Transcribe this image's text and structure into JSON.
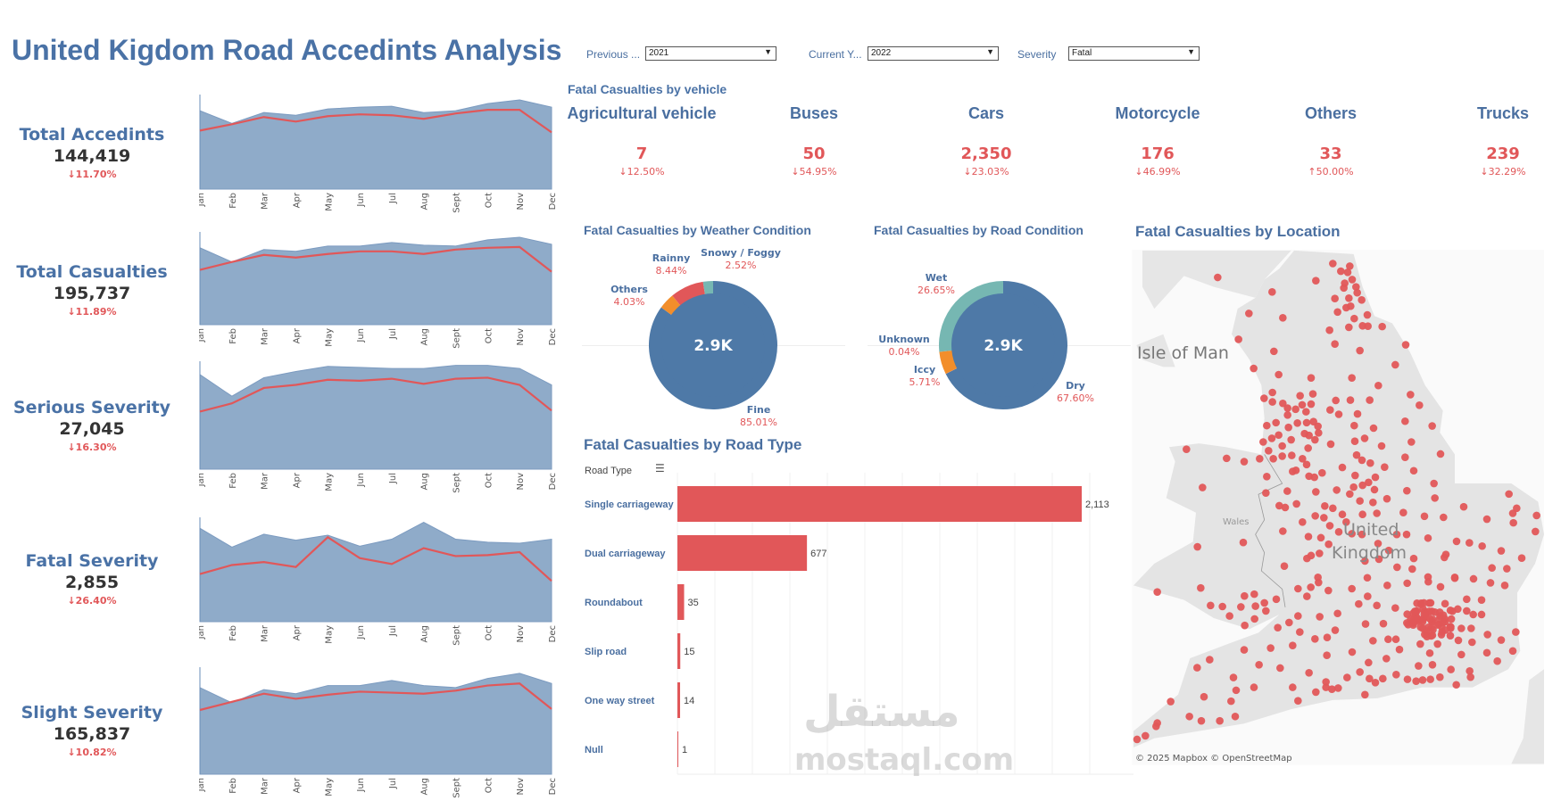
{
  "title": "United Kigdom Road Accedints Analysis",
  "filters": [
    {
      "label": "Previous ...",
      "value": "2021"
    },
    {
      "label": "Current Y...",
      "value": "2022"
    },
    {
      "label": "Severity",
      "value": "Fatal"
    }
  ],
  "months": [
    "Jan",
    "Feb",
    "Mar",
    "Apr",
    "May",
    "Jun",
    "Jul",
    "Aug",
    "Sept",
    "Oct",
    "Nov",
    "Dec"
  ],
  "kpis": [
    {
      "label": "Total Accedints",
      "value": "144,419",
      "change": "↓11.70%",
      "previous": [
        87,
        73,
        85,
        82,
        89,
        91,
        92,
        85,
        87,
        95,
        99,
        91
      ],
      "current": [
        65,
        72,
        80,
        75,
        81,
        83,
        82,
        78,
        84,
        88,
        88,
        63
      ]
    },
    {
      "label": "Total Casualties",
      "value": "195,737",
      "change": "↓11.89%",
      "previous": [
        87,
        71,
        85,
        83,
        89,
        89,
        93,
        90,
        89,
        96,
        99,
        91
      ],
      "current": [
        62,
        71,
        79,
        76,
        80,
        83,
        83,
        80,
        85,
        87,
        88,
        60
      ]
    },
    {
      "label": "Serious Severity",
      "value": "27,045",
      "change": "↓16.30%",
      "previous": [
        92,
        71,
        89,
        95,
        100,
        99,
        98,
        98,
        101,
        101,
        98,
        82
      ],
      "current": [
        56,
        64,
        79,
        82,
        87,
        86,
        88,
        83,
        88,
        89,
        82,
        57
      ]
    },
    {
      "label": "Fatal Severity",
      "value": "2,855",
      "change": "↓26.40%",
      "previous": [
        94,
        75,
        88,
        82,
        87,
        76,
        83,
        100,
        83,
        80,
        79,
        83
      ],
      "current": [
        48,
        57,
        60,
        55,
        85,
        64,
        58,
        74,
        66,
        67,
        70,
        41
      ]
    },
    {
      "label": "Slight Severity",
      "value": "165,837",
      "change": "↓10.82%",
      "previous": [
        85,
        70,
        83,
        79,
        87,
        87,
        92,
        87,
        85,
        94,
        99,
        89
      ],
      "current": [
        63,
        71,
        79,
        74,
        78,
        81,
        80,
        79,
        82,
        87,
        89,
        64
      ]
    }
  ],
  "vehicles": {
    "title": "Fatal Casualties by vehicle",
    "items": [
      {
        "name": "Agricultural vehicle",
        "value": "7",
        "change": "↓12.50%"
      },
      {
        "name": "Buses",
        "value": "50",
        "change": "↓54.95%"
      },
      {
        "name": "Cars",
        "value": "2,350",
        "change": "↓23.03%"
      },
      {
        "name": "Motorcycle",
        "value": "176",
        "change": "↓46.99%"
      },
      {
        "name": "Others",
        "value": "33",
        "change": "↑50.00%"
      },
      {
        "name": "Trucks",
        "value": "239",
        "change": "↓32.29%"
      }
    ]
  },
  "weather": {
    "title": "Fatal Casualties by Weather Condition",
    "center": "2.9K",
    "slices": [
      {
        "name": "Fine",
        "pct": "85.01%",
        "value": 85.01,
        "color": "#4e79a7"
      },
      {
        "name": "Others",
        "pct": "4.03%",
        "value": 4.03,
        "color": "#f28e2b"
      },
      {
        "name": "Rainny",
        "pct": "8.44%",
        "value": 8.44,
        "color": "#e15759"
      },
      {
        "name": "Snowy / Foggy",
        "pct": "2.52%",
        "value": 2.52,
        "color": "#76b7b2"
      }
    ]
  },
  "road_condition": {
    "title": "Fatal  Casualties by Road Condition",
    "center": "2.9K",
    "slices": [
      {
        "name": "Dry",
        "pct": "67.60%",
        "value": 67.6,
        "color": "#4e79a7"
      },
      {
        "name": "Unknown",
        "pct": "0.04%",
        "value": 0.04,
        "color": "#e15759"
      },
      {
        "name": "Iccy",
        "pct": "5.71%",
        "value": 5.71,
        "color": "#f28e2b"
      },
      {
        "name": "Wet",
        "pct": "26.65%",
        "value": 26.65,
        "color": "#76b7b2"
      }
    ]
  },
  "chart_data": {
    "type": "bar",
    "title": "Fatal Casualties by Road Type",
    "axis_header": "Road Type",
    "categories": [
      "Single carriageway",
      "Dual carriageway",
      "Roundabout",
      "Slip road",
      "One way street",
      "Null"
    ],
    "values": [
      2113,
      677,
      35,
      15,
      14,
      1
    ],
    "value_labels": [
      "2,113",
      "677",
      "35",
      "15",
      "14",
      "1"
    ],
    "xlim": [
      0,
      2400
    ]
  },
  "map": {
    "title": "Fatal Casualties by Location",
    "labels": {
      "isle": "Isle of Man",
      "wales": "Wales",
      "uk1": "United",
      "uk2": "Kingdom"
    },
    "attribution": "© 2025 Mapbox  © OpenStreetMap"
  },
  "watermark": {
    "arabic": "مستقل",
    "latin": "mostaql.com"
  },
  "colors": {
    "accent": "#4a72a6",
    "red": "#e15759",
    "area": "#8fabc9"
  }
}
